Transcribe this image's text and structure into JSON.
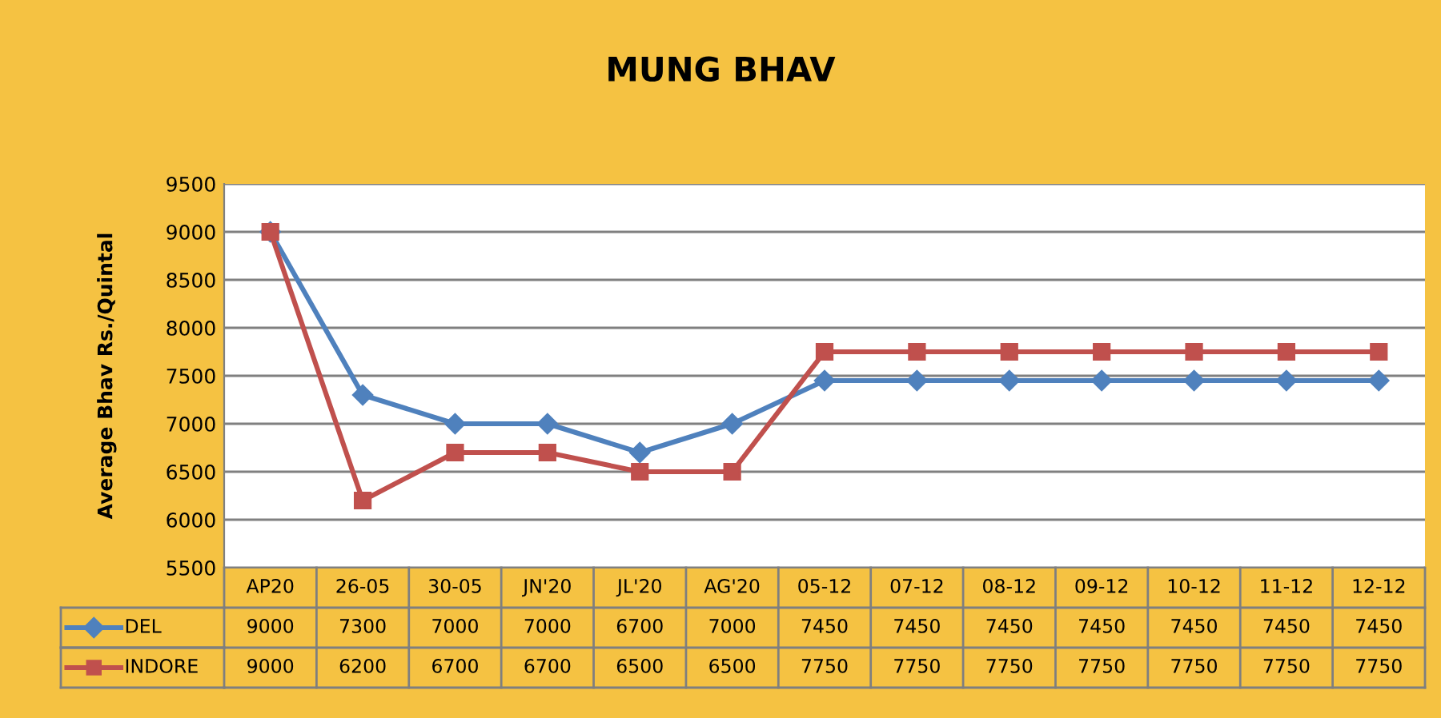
{
  "chart_data": {
    "type": "line",
    "title": "MUNG BHAV",
    "ylabel": "Average Bhav Rs./Quintal",
    "categories": [
      "AP20",
      "26-05",
      "30-05",
      "JN'20",
      "JL'20",
      "AG'20",
      "05-12",
      "07-12",
      "08-12",
      "09-12",
      "10-12",
      "11-12",
      "12-12"
    ],
    "series": [
      {
        "name": "DEL",
        "color": "#4f81bd",
        "marker": "diamond",
        "values": [
          9000,
          7300,
          7000,
          7000,
          6700,
          7000,
          7450,
          7450,
          7450,
          7450,
          7450,
          7450,
          7450
        ]
      },
      {
        "name": "INDORE",
        "color": "#c0504d",
        "marker": "square",
        "values": [
          9000,
          6200,
          6700,
          6700,
          6500,
          6500,
          7750,
          7750,
          7750,
          7750,
          7750,
          7750,
          7750
        ]
      }
    ],
    "ylim": [
      5500,
      9500
    ],
    "yticks": [
      5500,
      6000,
      6500,
      7000,
      7500,
      8000,
      8500,
      9000,
      9500
    ],
    "grid": "y",
    "legend": "bottom",
    "data_labels": true,
    "line_style": "solid"
  }
}
